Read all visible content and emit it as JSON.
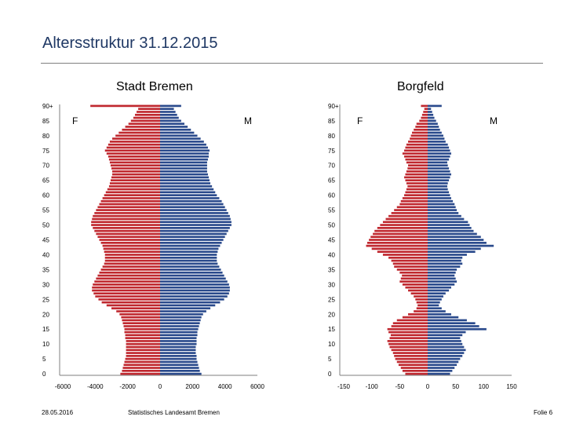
{
  "slide": {
    "title": "Altersstruktur 31.12.2015",
    "footer_date": "28.05.2016",
    "footer_source": "Statistisches Landesamt Bremen",
    "footer_page": "Folie 6"
  },
  "colors": {
    "female": "#c0282f",
    "male": "#2a4a8c",
    "axis": "#7f7f7f",
    "title": "#1f3864"
  },
  "chart_data": [
    {
      "type": "bar",
      "orientation": "horizontal population pyramid",
      "title": "Stadt Bremen",
      "age_ticks": [
        "0",
        "5",
        "10",
        "15",
        "20",
        "25",
        "30",
        "35",
        "40",
        "45",
        "50",
        "55",
        "60",
        "65",
        "70",
        "75",
        "80",
        "85",
        "90+"
      ],
      "xticks": [
        "-6000",
        "-4000",
        "-2000",
        "0",
        "2000",
        "4000",
        "6000"
      ],
      "xlim": [
        -6000,
        6000
      ],
      "female_label": "F",
      "male_label": "M",
      "series": [
        {
          "name": "F",
          "values": [
            -2450,
            -2350,
            -2300,
            -2250,
            -2200,
            -2150,
            -2100,
            -2100,
            -2100,
            -2100,
            -2100,
            -2100,
            -2150,
            -2150,
            -2200,
            -2200,
            -2250,
            -2300,
            -2350,
            -2400,
            -2500,
            -2700,
            -3000,
            -3300,
            -3600,
            -3800,
            -4000,
            -4100,
            -4200,
            -4200,
            -4150,
            -4050,
            -3950,
            -3850,
            -3750,
            -3650,
            -3550,
            -3450,
            -3400,
            -3400,
            -3400,
            -3450,
            -3500,
            -3550,
            -3650,
            -3750,
            -3850,
            -3950,
            -4050,
            -4150,
            -4250,
            -4250,
            -4200,
            -4150,
            -4050,
            -3950,
            -3850,
            -3750,
            -3650,
            -3550,
            -3450,
            -3350,
            -3250,
            -3150,
            -3100,
            -3050,
            -3000,
            -2950,
            -2950,
            -3000,
            -3050,
            -3100,
            -3150,
            -3200,
            -3300,
            -3400,
            -3300,
            -3200,
            -3100,
            -2950,
            -2750,
            -2550,
            -2350,
            -2150,
            -1950,
            -1800,
            -1650,
            -1550,
            -1450,
            -1350,
            -4300
          ]
        },
        {
          "name": "M",
          "values": [
            2550,
            2450,
            2400,
            2350,
            2300,
            2250,
            2250,
            2200,
            2200,
            2200,
            2250,
            2250,
            2250,
            2300,
            2300,
            2350,
            2400,
            2450,
            2500,
            2550,
            2650,
            2850,
            3100,
            3400,
            3700,
            3950,
            4150,
            4250,
            4300,
            4300,
            4250,
            4150,
            4050,
            3950,
            3850,
            3750,
            3650,
            3550,
            3500,
            3500,
            3500,
            3550,
            3600,
            3700,
            3800,
            3900,
            4000,
            4100,
            4200,
            4300,
            4400,
            4400,
            4350,
            4300,
            4200,
            4100,
            4000,
            3900,
            3800,
            3650,
            3500,
            3400,
            3300,
            3200,
            3100,
            3050,
            3000,
            2950,
            2900,
            2900,
            2900,
            2900,
            2950,
            3000,
            3000,
            3050,
            2950,
            2850,
            2700,
            2500,
            2300,
            2100,
            1900,
            1700,
            1500,
            1300,
            1150,
            1050,
            950,
            850,
            1300
          ]
        }
      ]
    },
    {
      "type": "bar",
      "orientation": "horizontal population pyramid",
      "title": "Borgfeld",
      "age_ticks": [
        "0",
        "5",
        "10",
        "15",
        "20",
        "25",
        "30",
        "35",
        "40",
        "45",
        "50",
        "55",
        "60",
        "65",
        "70",
        "75",
        "80",
        "85",
        "90+"
      ],
      "xticks": [
        "-150",
        "-100",
        "-50",
        "0",
        "50",
        "100",
        "150"
      ],
      "xlim": [
        -150,
        150
      ],
      "female_label": "F",
      "male_label": "M",
      "series": [
        {
          "name": "F",
          "values": [
            -40,
            -45,
            -48,
            -52,
            -55,
            -58,
            -60,
            -62,
            -65,
            -68,
            -70,
            -72,
            -68,
            -66,
            -70,
            -72,
            -65,
            -62,
            -55,
            -45,
            -35,
            -25,
            -20,
            -18,
            -20,
            -22,
            -25,
            -30,
            -35,
            -40,
            -45,
            -50,
            -48,
            -46,
            -50,
            -55,
            -60,
            -62,
            -65,
            -70,
            -80,
            -90,
            -100,
            -110,
            -108,
            -105,
            -102,
            -98,
            -95,
            -90,
            -85,
            -80,
            -75,
            -70,
            -65,
            -60,
            -55,
            -50,
            -48,
            -45,
            -42,
            -40,
            -38,
            -36,
            -38,
            -40,
            -42,
            -40,
            -38,
            -36,
            -35,
            -38,
            -40,
            -42,
            -45,
            -42,
            -40,
            -38,
            -35,
            -32,
            -30,
            -28,
            -25,
            -22,
            -20,
            -15,
            -12,
            -10,
            -8,
            -6,
            -12
          ]
        },
        {
          "name": "M",
          "values": [
            40,
            44,
            48,
            52,
            55,
            58,
            62,
            65,
            68,
            65,
            62,
            60,
            58,
            62,
            68,
            105,
            92,
            85,
            70,
            55,
            42,
            32,
            25,
            20,
            22,
            25,
            28,
            32,
            38,
            42,
            48,
            52,
            50,
            48,
            50,
            52,
            58,
            62,
            60,
            62,
            70,
            85,
            95,
            118,
            105,
            100,
            95,
            88,
            82,
            78,
            75,
            72,
            65,
            60,
            55,
            52,
            50,
            48,
            45,
            42,
            40,
            38,
            36,
            35,
            36,
            38,
            40,
            42,
            40,
            38,
            36,
            35,
            38,
            40,
            42,
            40,
            38,
            36,
            32,
            30,
            28,
            25,
            22,
            20,
            18,
            15,
            12,
            10,
            8,
            6,
            25
          ]
        }
      ]
    }
  ]
}
